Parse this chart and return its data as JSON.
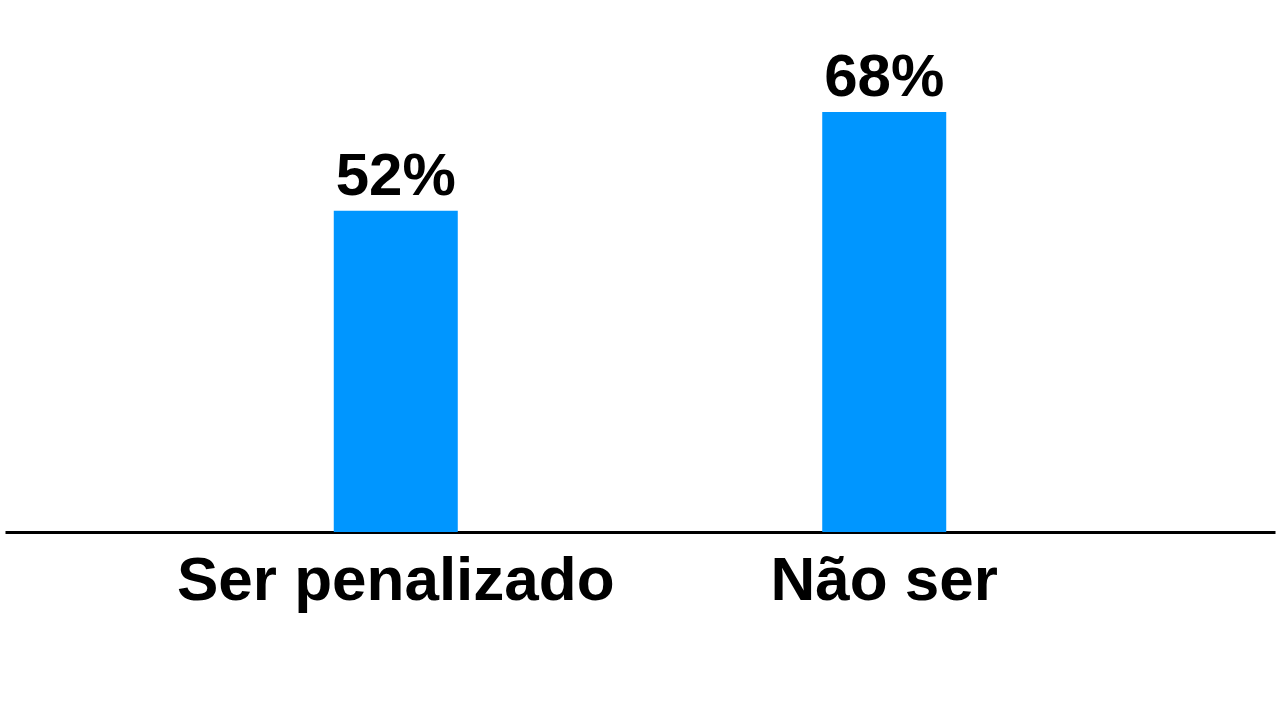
{
  "chart_data": {
    "type": "bar",
    "categories": [
      "Ser penalizado",
      "Não ser"
    ],
    "values": [
      52,
      68
    ],
    "color": "#0096ff",
    "value_labels": [
      "52%",
      "68%"
    ],
    "grid": false
  }
}
